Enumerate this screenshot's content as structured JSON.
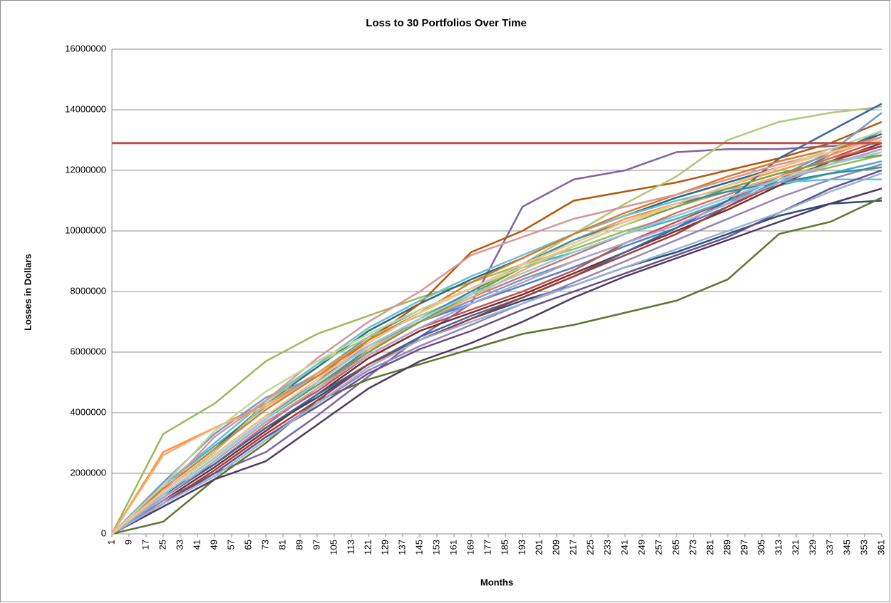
{
  "chart_data": {
    "type": "line",
    "title": "Loss to 30 Portfolios Over Time",
    "x_label": "Months",
    "y_label": "Losses in Dollars",
    "x": [
      1,
      25,
      49,
      73,
      97,
      121,
      145,
      169,
      193,
      217,
      241,
      265,
      289,
      313,
      337,
      361
    ],
    "xlim": [
      1,
      361
    ],
    "xticks": [
      1,
      9,
      17,
      25,
      33,
      41,
      49,
      57,
      65,
      73,
      81,
      89,
      97,
      105,
      113,
      121,
      129,
      137,
      145,
      153,
      161,
      169,
      177,
      185,
      193,
      201,
      209,
      217,
      225,
      233,
      241,
      249,
      257,
      265,
      273,
      281,
      289,
      297,
      305,
      313,
      321,
      329,
      337,
      345,
      353,
      361
    ],
    "ylim": [
      0,
      16000000
    ],
    "yticks": [
      0,
      2000000,
      4000000,
      6000000,
      8000000,
      10000000,
      12000000,
      14000000,
      16000000
    ],
    "grid": true,
    "reference_line": {
      "value": 12900000,
      "color": "#c0504d"
    },
    "series": [
      {
        "color": "#4f81bd",
        "values": [
          0,
          1400000,
          2600000,
          3900000,
          4900000,
          6100000,
          7000000,
          7600000,
          8200000,
          8800000,
          9500000,
          10100000,
          10800000,
          11700000,
          12500000,
          13300000
        ]
      },
      {
        "color": "#c0504d",
        "values": [
          0,
          1200000,
          2400000,
          3700000,
          4700000,
          5900000,
          6800000,
          7400000,
          8000000,
          8700000,
          9600000,
          10300000,
          11000000,
          11800000,
          12400000,
          13000000
        ]
      },
      {
        "color": "#9bbb59",
        "values": [
          0,
          3300000,
          4300000,
          5700000,
          6600000,
          7200000,
          7800000,
          8300000,
          8900000,
          9400000,
          10000000,
          10500000,
          11100000,
          11700000,
          12100000,
          12500000
        ]
      },
      {
        "color": "#8064a2",
        "values": [
          0,
          1000000,
          2000000,
          2700000,
          3900000,
          5200000,
          6500000,
          7600000,
          10800000,
          11700000,
          12000000,
          12600000,
          12700000,
          12700000,
          12800000,
          12900000
        ]
      },
      {
        "color": "#4bacc6",
        "values": [
          0,
          1600000,
          2900000,
          4200000,
          5300000,
          6500000,
          7400000,
          8100000,
          8800000,
          9300000,
          9900000,
          10400000,
          11000000,
          11500000,
          11900000,
          12300000
        ]
      },
      {
        "color": "#f79646",
        "values": [
          0,
          2700000,
          3500000,
          4300000,
          5300000,
          6400000,
          7300000,
          8100000,
          8900000,
          9700000,
          10400000,
          10900000,
          11500000,
          12000000,
          12500000,
          13100000
        ]
      },
      {
        "color": "#2c4d75",
        "values": [
          0,
          1300000,
          2300000,
          3500000,
          4500000,
          5600000,
          6400000,
          7100000,
          7700000,
          8200000,
          8800000,
          9300000,
          9900000,
          10500000,
          10900000,
          11000000
        ]
      },
      {
        "color": "#772c2a",
        "values": [
          0,
          1100000,
          2200000,
          3400000,
          4600000,
          5800000,
          6700000,
          7300000,
          7900000,
          8600000,
          9300000,
          10000000,
          10700000,
          11500000,
          12300000,
          12900000
        ]
      },
      {
        "color": "#5f7530",
        "values": [
          0,
          400000,
          1800000,
          3000000,
          4400000,
          5100000,
          5600000,
          6100000,
          6600000,
          6900000,
          7300000,
          7700000,
          8400000,
          9900000,
          10300000,
          11100000
        ]
      },
      {
        "color": "#4d3b62",
        "values": [
          0,
          900000,
          1800000,
          2400000,
          3600000,
          4800000,
          5700000,
          6300000,
          7000000,
          7800000,
          8500000,
          9100000,
          9700000,
          10300000,
          10900000,
          11400000
        ]
      },
      {
        "color": "#276a7c",
        "values": [
          0,
          1500000,
          2800000,
          4300000,
          5500000,
          6700000,
          7600000,
          8400000,
          9100000,
          9900000,
          10500000,
          11100000,
          11600000,
          12100000,
          12600000,
          13200000
        ]
      },
      {
        "color": "#b65708",
        "values": [
          0,
          1300000,
          2500000,
          3800000,
          5000000,
          6400000,
          7600000,
          9300000,
          10000000,
          11000000,
          11300000,
          11600000,
          12000000,
          12400000,
          12900000,
          13600000
        ]
      },
      {
        "color": "#729aca",
        "values": [
          0,
          1700000,
          3300000,
          4500000,
          5200000,
          6200000,
          7000000,
          7700000,
          8400000,
          9000000,
          9600000,
          10200000,
          10900000,
          11800000,
          12600000,
          13900000
        ]
      },
      {
        "color": "#cd7371",
        "values": [
          0,
          1200000,
          2300000,
          3600000,
          4800000,
          6000000,
          7000000,
          7800000,
          8500000,
          9200000,
          9900000,
          10600000,
          11200000,
          11800000,
          12400000,
          12800000
        ]
      },
      {
        "color": "#afc97a",
        "values": [
          0,
          1400000,
          2700000,
          4300000,
          5600000,
          6500000,
          7200000,
          7900000,
          8900000,
          9900000,
          10900000,
          11800000,
          13000000,
          13600000,
          13900000,
          14100000
        ]
      },
      {
        "color": "#9983b5",
        "values": [
          0,
          1100000,
          2000000,
          3200000,
          4300000,
          5400000,
          6200000,
          6900000,
          7600000,
          8300000,
          9000000,
          9700000,
          10400000,
          11100000,
          11700000,
          12200000
        ]
      },
      {
        "color": "#6fbdd1",
        "values": [
          0,
          1600000,
          3000000,
          4400000,
          5600000,
          6800000,
          7700000,
          8500000,
          9200000,
          9900000,
          10500000,
          11000000,
          11400000,
          11600000,
          11700000,
          11700000
        ]
      },
      {
        "color": "#f9ab6b",
        "values": [
          0,
          2600000,
          3500000,
          4200000,
          5200000,
          6100000,
          7000000,
          7800000,
          8700000,
          9500000,
          10200000,
          10800000,
          11300000,
          11800000,
          12200000,
          12700000
        ]
      },
      {
        "color": "#3a679c",
        "values": [
          0,
          1200000,
          2300000,
          3500000,
          4600000,
          5600000,
          6500000,
          7200000,
          7800000,
          8500000,
          9300000,
          10100000,
          11000000,
          12400000,
          13300000,
          14200000
        ]
      },
      {
        "color": "#9e3b38",
        "values": [
          0,
          1000000,
          2100000,
          3300000,
          4400000,
          5600000,
          6400000,
          7100000,
          7800000,
          8500000,
          9200000,
          9900000,
          10800000,
          11600000,
          12300000,
          12800000
        ]
      },
      {
        "color": "#7e9c40",
        "values": [
          0,
          1300000,
          2500000,
          3800000,
          4900000,
          6000000,
          7000000,
          7900000,
          8800000,
          9500000,
          10200000,
          10800000,
          11400000,
          11900000,
          12300000,
          12500000
        ]
      },
      {
        "color": "#664e83",
        "values": [
          0,
          1000000,
          2000000,
          3200000,
          4200000,
          5300000,
          6100000,
          6700000,
          7400000,
          8000000,
          8600000,
          9200000,
          9800000,
          10600000,
          11400000,
          12000000
        ]
      },
      {
        "color": "#358da4",
        "values": [
          0,
          1400000,
          2600000,
          3900000,
          5000000,
          6200000,
          7100000,
          8000000,
          8900000,
          9700000,
          10300000,
          10900000,
          11300000,
          11600000,
          11900000,
          12100000
        ]
      },
      {
        "color": "#dc7a2a",
        "values": [
          0,
          1500000,
          2800000,
          4100000,
          5200000,
          6400000,
          7300000,
          8300000,
          9100000,
          9900000,
          10600000,
          11200000,
          11800000,
          12300000,
          12700000,
          13100000
        ]
      },
      {
        "color": "#95b3d7",
        "values": [
          0,
          1000000,
          1900000,
          3100000,
          4300000,
          5500000,
          6400000,
          7000000,
          7600000,
          8200000,
          8800000,
          9400000,
          10000000,
          10600000,
          11300000,
          11900000
        ]
      },
      {
        "color": "#d99694",
        "values": [
          0,
          1400000,
          3200000,
          4400000,
          5800000,
          7000000,
          8000000,
          9200000,
          9800000,
          10400000,
          10800000,
          11200000,
          11700000,
          12200000,
          12600000,
          13100000
        ]
      },
      {
        "color": "#c3d69b",
        "values": [
          0,
          1600000,
          3400000,
          4700000,
          5700000,
          6600000,
          7400000,
          8100000,
          8800000,
          9500000,
          10200000,
          10900000,
          11500000,
          12100000,
          12700000,
          13300000
        ]
      },
      {
        "color": "#b3a2c7",
        "values": [
          0,
          1200000,
          2400000,
          3700000,
          4800000,
          5900000,
          6800000,
          7600000,
          8300000,
          9000000,
          9600000,
          10200000,
          10900000,
          11600000,
          12200000,
          12700000
        ]
      },
      {
        "color": "#92cddc",
        "values": [
          0,
          1300000,
          2500000,
          3800000,
          5000000,
          6200000,
          7100000,
          7900000,
          8600000,
          9300000,
          9900000,
          10500000,
          11100000,
          11700000,
          12200000,
          12600000
        ]
      },
      {
        "color": "#fac090",
        "values": [
          0,
          1400000,
          2600000,
          3900000,
          5100000,
          6300000,
          7300000,
          8100000,
          8900000,
          9600000,
          10300000,
          10900000,
          11500000,
          12100000,
          12600000,
          13000000
        ]
      }
    ]
  }
}
